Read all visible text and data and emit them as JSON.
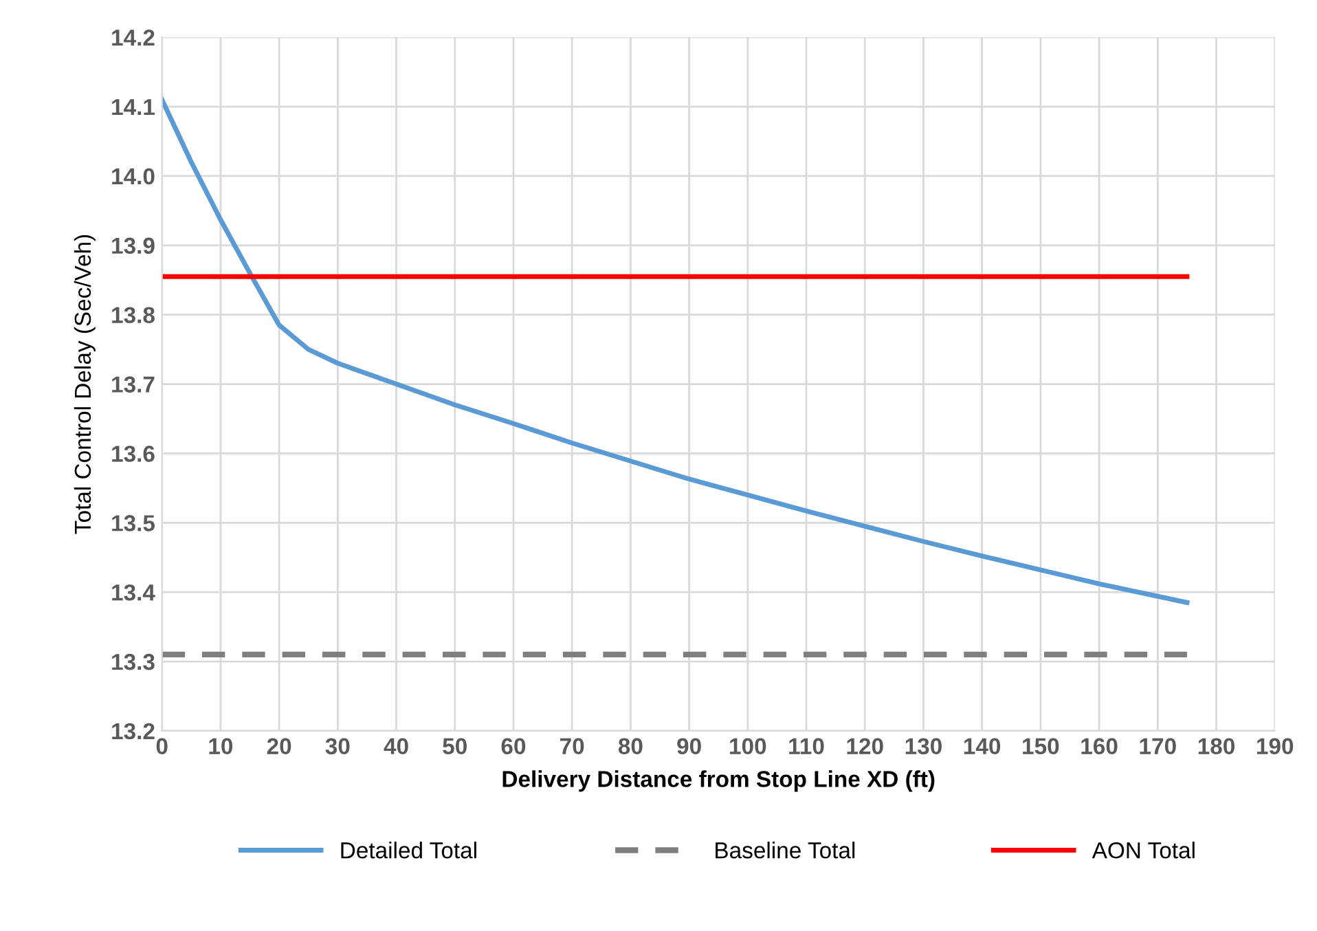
{
  "chart_data": {
    "type": "line",
    "xlabel": "Delivery Distance from Stop Line XD (ft)",
    "ylabel": "Total Control Delay (Sec/Veh)",
    "series": [
      {
        "name": "Detailed Total",
        "color": "#5b9bd5",
        "x": [
          0,
          5,
          10,
          15,
          20,
          25,
          30,
          40,
          50,
          60,
          70,
          80,
          90,
          100,
          110,
          120,
          130,
          140,
          150,
          160,
          175
        ],
        "values": [
          14.11,
          14.02,
          13.937,
          13.86,
          13.785,
          13.75,
          13.73,
          13.7,
          13.67,
          13.643,
          13.615,
          13.589,
          13.563,
          13.54,
          13.517,
          13.495,
          13.473,
          13.452,
          13.432,
          13.412,
          13.385
        ]
      },
      {
        "name": "Baseline Total",
        "color": "#7f7f7f",
        "line_style": "dashed",
        "x": [
          0,
          175
        ],
        "values": [
          13.31,
          13.31
        ]
      },
      {
        "name": "AON Total",
        "color": "#ff0000",
        "x": [
          0,
          175
        ],
        "values": [
          13.855,
          13.855
        ]
      }
    ],
    "xlim": [
      0,
      190
    ],
    "xticks": [
      0,
      10,
      20,
      30,
      40,
      50,
      60,
      70,
      80,
      90,
      100,
      110,
      120,
      130,
      140,
      150,
      160,
      170,
      180,
      190
    ],
    "ylim": [
      13.2,
      14.2
    ],
    "yticks": [
      {
        "value": 13.2,
        "label": "13.2"
      },
      {
        "value": 13.3,
        "label": "13.3"
      },
      {
        "value": 13.4,
        "label": "13.4"
      },
      {
        "value": 13.5,
        "label": "13.5"
      },
      {
        "value": 13.6,
        "label": "13.6"
      },
      {
        "value": 13.7,
        "label": "13.7"
      },
      {
        "value": 13.8,
        "label": "13.8"
      },
      {
        "value": 13.9,
        "label": "13.9"
      },
      {
        "value": 14.0,
        "label": "14.0"
      },
      {
        "value": 14.1,
        "label": "14.1"
      },
      {
        "value": 14.2,
        "label": "14.2"
      }
    ],
    "grid": true,
    "legend": "bottom",
    "marker": "none"
  }
}
